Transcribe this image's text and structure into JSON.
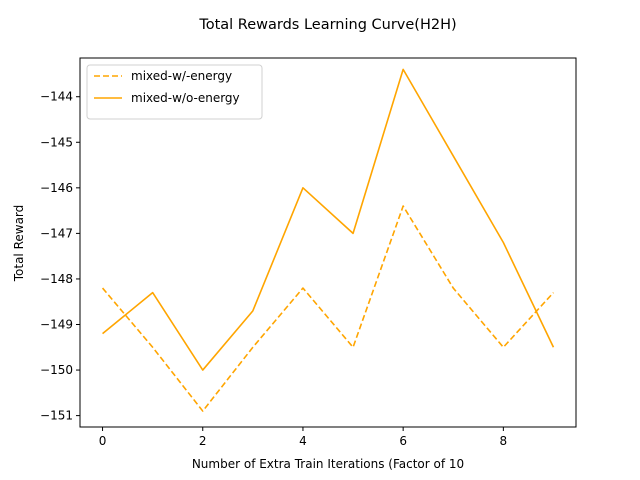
{
  "chart_data": {
    "type": "line",
    "title": "Total Rewards Learning Curve(H2H)",
    "xlabel": "Number of Extra Train Iterations (Factor of 10",
    "ylabel": "Total Reward",
    "x": [
      0,
      1,
      2,
      3,
      4,
      5,
      6,
      7,
      8,
      9
    ],
    "xlim": [
      -0.45,
      9.45
    ],
    "ylim": [
      -151.25,
      -143.15
    ],
    "xticks": [
      0,
      2,
      4,
      6,
      8
    ],
    "yticks": [
      -151,
      -150,
      -149,
      -148,
      -147,
      -146,
      -145,
      -144
    ],
    "xtick_labels": [
      "0",
      "2",
      "4",
      "6",
      "8"
    ],
    "ytick_labels": [
      "−151",
      "−150",
      "−149",
      "−148",
      "−147",
      "−146",
      "−145",
      "−144"
    ],
    "grid": false,
    "legend_position": "upper-left",
    "series": [
      {
        "name": "mixed-w/-energy",
        "color": "#FFA500",
        "linestyle": "dashed",
        "values": [
          -148.2,
          -149.5,
          -150.9,
          -149.5,
          -148.2,
          -149.5,
          -146.4,
          -148.2,
          -149.5,
          -148.3
        ]
      },
      {
        "name": "mixed-w/o-energy",
        "color": "#FFA500",
        "linestyle": "solid",
        "values": [
          -149.2,
          -148.3,
          -150.0,
          -148.7,
          -146.0,
          -147.0,
          -143.4,
          -145.3,
          -147.2,
          -149.5
        ]
      }
    ]
  }
}
